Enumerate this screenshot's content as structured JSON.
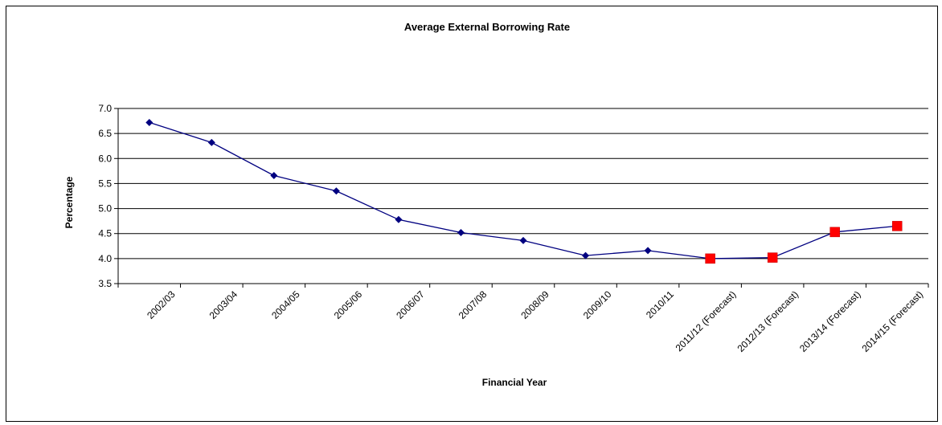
{
  "chart_data": {
    "type": "line",
    "title": "Average External Borrowing Rate",
    "xlabel": "Financial Year",
    "ylabel": "Percentage",
    "ylim": [
      3.5,
      7.0
    ],
    "yticks": [
      "3.5",
      "4.0",
      "4.5",
      "5.0",
      "5.5",
      "6.0",
      "6.5",
      "7.0"
    ],
    "categories": [
      "2002/03",
      "2003/04",
      "2004/05",
      "2005/06",
      "2006/07",
      "2007/08",
      "2008/09",
      "2009/10",
      "2010/11",
      "2011/12 (Forecast)",
      "2012/13 (Forecast)",
      "2013/14 (Forecast)",
      "2014/15 (Forecast)"
    ],
    "values": [
      6.72,
      6.32,
      5.66,
      5.35,
      4.78,
      4.52,
      4.36,
      4.06,
      4.16,
      4.0,
      4.02,
      4.53,
      4.65
    ],
    "forecast_start_index": 9,
    "grid": true,
    "legend": "none",
    "colors": {
      "line": "#000080",
      "actual_marker": "#000080",
      "forecast_marker": "#ff0000",
      "gridline": "#000000"
    }
  }
}
